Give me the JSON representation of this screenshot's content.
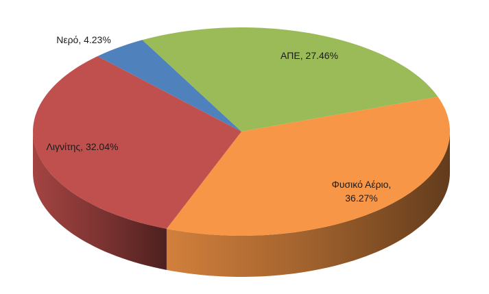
{
  "chart_data": {
    "type": "pie3d",
    "values": [
      27.46,
      36.27,
      32.04,
      4.23
    ],
    "value_labels": [
      "ΑΠΕ, 27.46%",
      "Φυσικό Αέριο,\n36.27%",
      "Λιγνίτης, 32.04%",
      "Νερό, 4.23%"
    ],
    "colors": [
      "#9bbb59",
      "#f79646",
      "#c0504d",
      "#4f81bd"
    ]
  }
}
